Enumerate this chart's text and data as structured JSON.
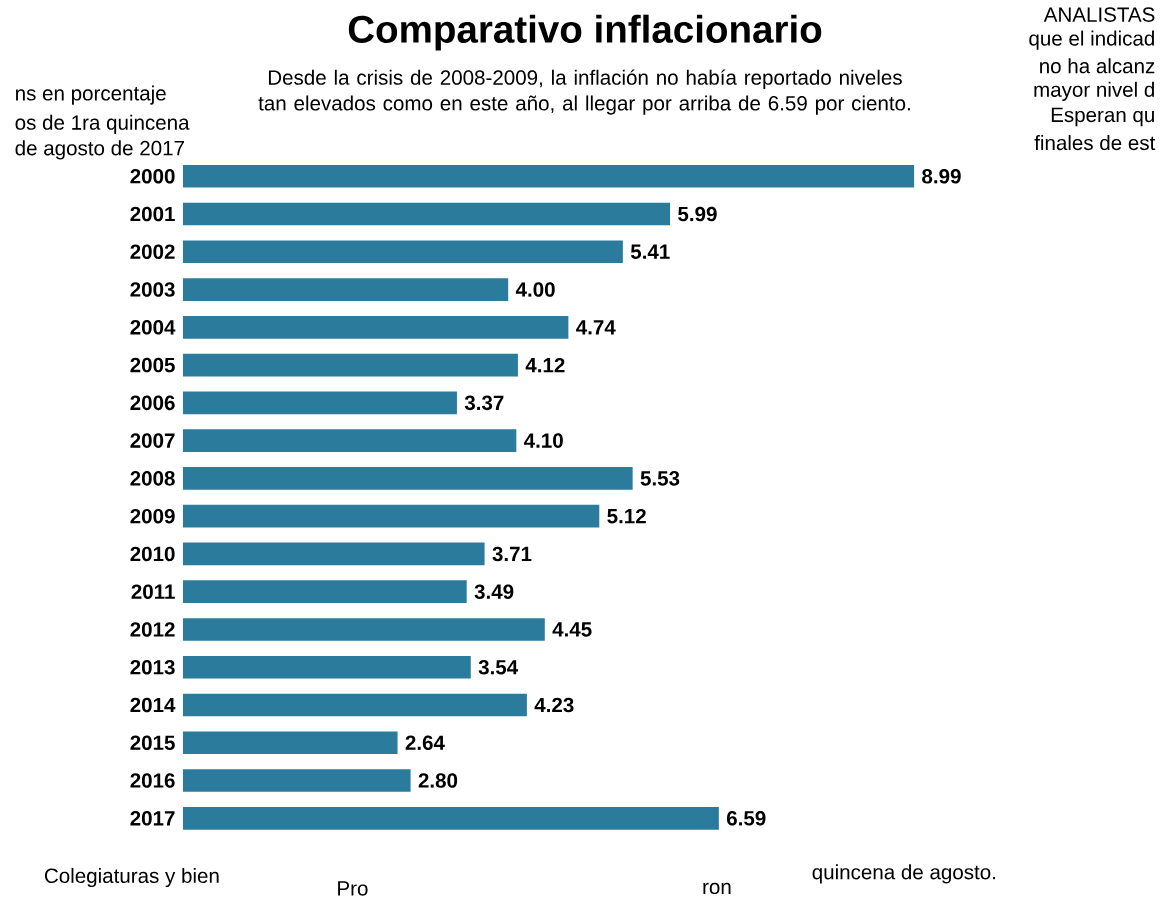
{
  "chart_data": {
    "type": "bar",
    "orientation": "horizontal",
    "title": "Comparativo inflacionario",
    "subtitle": "Desde la crisis de 2008-2009, la inflación no había reportado niveles tan elevados como en este año, al llegar por arriba de 6.59 por ciento.",
    "categories": [
      "2000",
      "2001",
      "2002",
      "2003",
      "2004",
      "2005",
      "2006",
      "2007",
      "2008",
      "2009",
      "2010",
      "2011",
      "2012",
      "2013",
      "2014",
      "2015",
      "2016",
      "2017"
    ],
    "values": [
      8.99,
      5.99,
      5.41,
      4.0,
      4.74,
      4.12,
      3.37,
      4.1,
      5.53,
      5.12,
      3.71,
      3.49,
      4.45,
      3.54,
      4.23,
      2.64,
      2.8,
      6.59
    ],
    "value_labels": [
      "8.99",
      "5.99",
      "5.41",
      "4.00",
      "4.74",
      "4.12",
      "3.37",
      "4.10",
      "5.53",
      "5.12",
      "3.71",
      "3.49",
      "4.45",
      "3.54",
      "4.23",
      "2.64",
      "2.80",
      "6.59"
    ],
    "color": "#2b7c9c",
    "tick_labels": "y",
    "grid": false,
    "annotations": [
      "ns en porcentaje",
      "os de 1ra quincena",
      "de agosto de 2017",
      "ANALISTAS",
      "que el indicad",
      "no ha alcanz",
      "mayor nivel d",
      "Esperan qu",
      "finales de est",
      "Colegiaturas y bien",
      "Pro",
      "ron",
      "quincena de agosto."
    ]
  }
}
